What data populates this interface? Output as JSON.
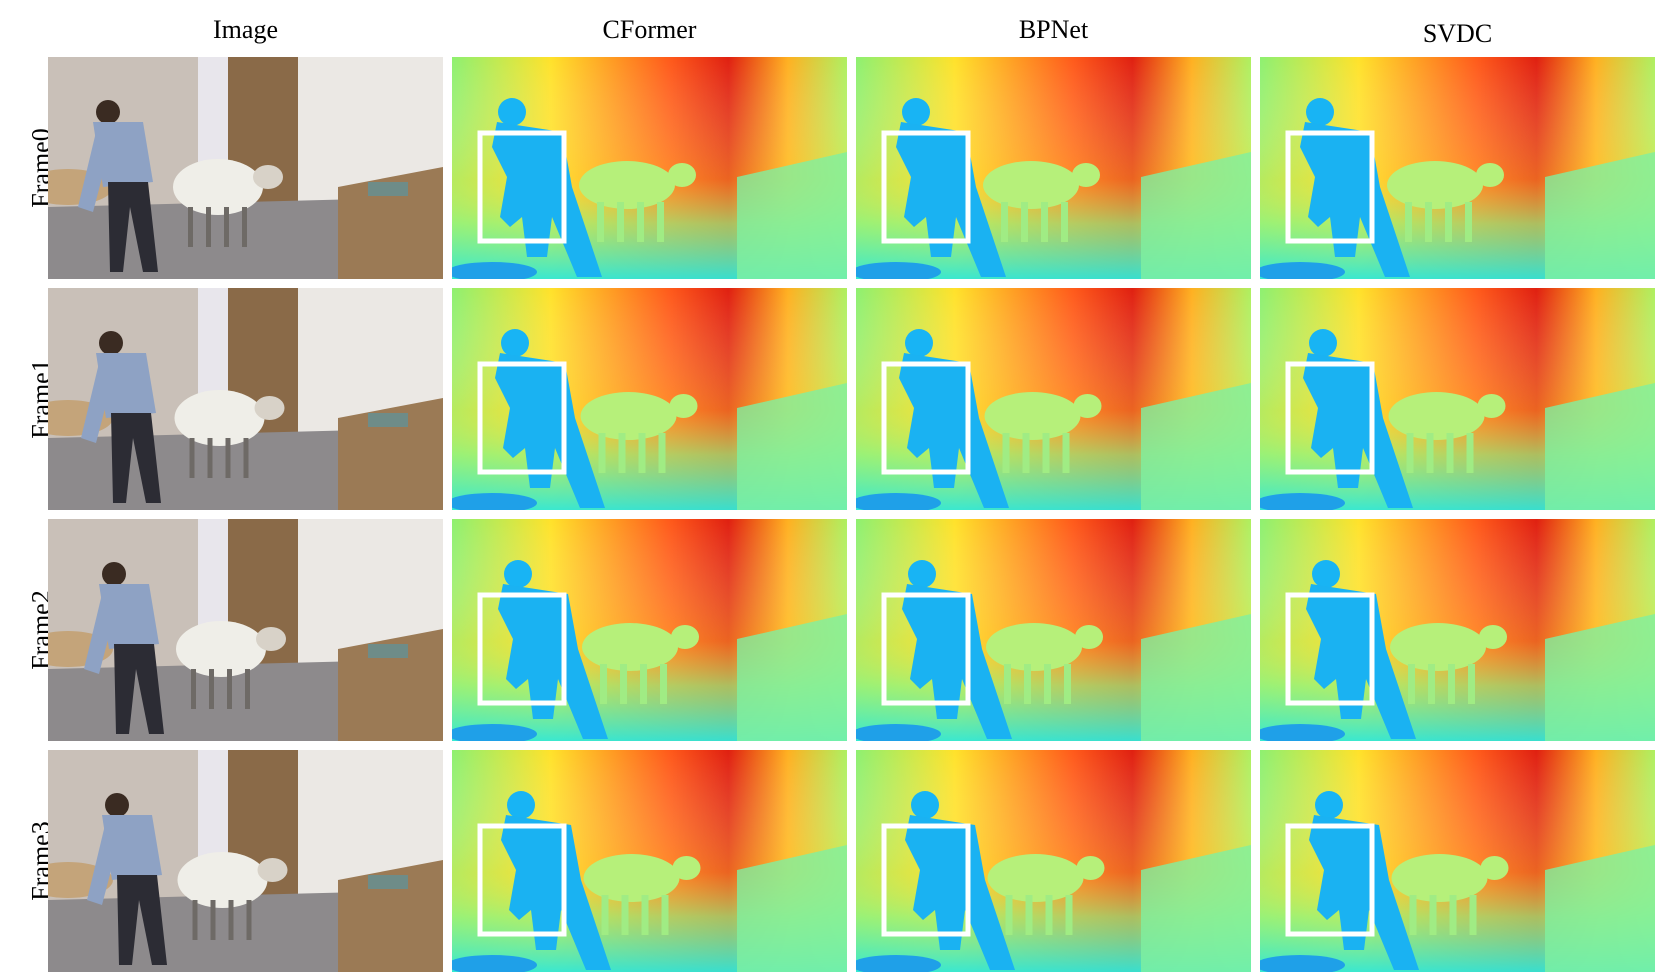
{
  "figure": {
    "columns": [
      "Image",
      "CFormer",
      "BPNet",
      "SVDC"
    ],
    "rows": [
      "Frame0",
      "Frame1",
      "Frame2",
      "Frame3"
    ]
  }
}
